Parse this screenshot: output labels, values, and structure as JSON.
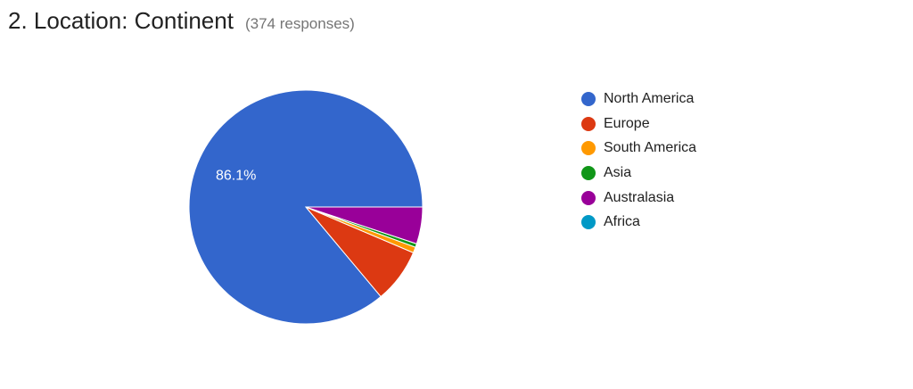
{
  "header": {
    "title": "2. Location: Continent",
    "response_count": "(374 responses)"
  },
  "chart_data": {
    "type": "pie",
    "unit": "percent",
    "slices": [
      {
        "label": "North America",
        "value": 86.1,
        "color": "#3366cc"
      },
      {
        "label": "Europe",
        "value": 7.5,
        "color": "#dc3912"
      },
      {
        "label": "South America",
        "value": 0.8,
        "color": "#ff9900"
      },
      {
        "label": "Asia",
        "value": 0.5,
        "color": "#109618"
      },
      {
        "label": "Australasia",
        "value": 5.1,
        "color": "#990099"
      },
      {
        "label": "Africa",
        "value": 0.0,
        "color": "#0099c6"
      }
    ],
    "data_labels": [
      {
        "slice": "North America",
        "text": "86.1%"
      }
    ],
    "legend_position": "right"
  }
}
